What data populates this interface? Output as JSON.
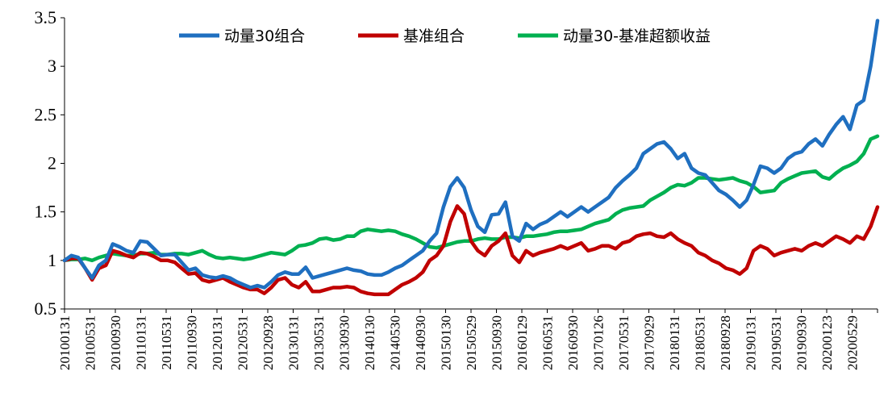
{
  "chart_data": {
    "type": "line",
    "title": "",
    "xlabel": "",
    "ylabel": "",
    "ylim": [
      0.5,
      3.5
    ],
    "yticks": [
      "0.5",
      "1",
      "1.5",
      "2",
      "2.5",
      "3",
      "3.5"
    ],
    "grid": false,
    "legend": "top-center",
    "x_tick_labels": [
      "20100131",
      "20100531",
      "20100930",
      "20110131",
      "20110531",
      "20110930",
      "20120131",
      "20120531",
      "20120928",
      "20130131",
      "20130531",
      "20130930",
      "20140130",
      "20140530",
      "20140930",
      "20150130",
      "20150529",
      "20150930",
      "20160129",
      "20160531",
      "20160930",
      "20170126",
      "20170531",
      "20170929",
      "20180131",
      "20180531",
      "20180928",
      "20190131",
      "20190531",
      "20190930",
      "20200123",
      "20200529"
    ],
    "series": [
      {
        "name": "动量30组合",
        "color": "#1f6fc0",
        "values": [
          1.0,
          1.05,
          1.03,
          0.92,
          0.82,
          0.95,
          1.0,
          1.17,
          1.14,
          1.1,
          1.08,
          1.2,
          1.19,
          1.12,
          1.05,
          1.06,
          1.06,
          0.98,
          0.9,
          0.92,
          0.85,
          0.83,
          0.82,
          0.84,
          0.82,
          0.78,
          0.75,
          0.72,
          0.74,
          0.72,
          0.78,
          0.85,
          0.88,
          0.86,
          0.86,
          0.93,
          0.82,
          0.84,
          0.86,
          0.88,
          0.9,
          0.92,
          0.9,
          0.89,
          0.86,
          0.85,
          0.85,
          0.88,
          0.92,
          0.95,
          1.0,
          1.05,
          1.1,
          1.2,
          1.28,
          1.55,
          1.76,
          1.85,
          1.75,
          1.52,
          1.35,
          1.29,
          1.47,
          1.48,
          1.6,
          1.25,
          1.2,
          1.38,
          1.32,
          1.37,
          1.4,
          1.45,
          1.5,
          1.45,
          1.5,
          1.55,
          1.5,
          1.55,
          1.6,
          1.65,
          1.75,
          1.82,
          1.88,
          1.95,
          2.1,
          2.15,
          2.2,
          2.22,
          2.15,
          2.05,
          2.1,
          1.95,
          1.9,
          1.88,
          1.8,
          1.72,
          1.68,
          1.62,
          1.55,
          1.62,
          1.78,
          1.97,
          1.95,
          1.9,
          1.95,
          2.05,
          2.1,
          2.12,
          2.2,
          2.25,
          2.18,
          2.3,
          2.4,
          2.48,
          2.35,
          2.6,
          2.65,
          3.0,
          3.47
        ]
      },
      {
        "name": "基准组合",
        "color": "#c00000",
        "values": [
          1.0,
          1.02,
          1.02,
          0.92,
          0.8,
          0.92,
          0.95,
          1.1,
          1.08,
          1.05,
          1.03,
          1.08,
          1.07,
          1.04,
          1.0,
          1.0,
          0.98,
          0.92,
          0.86,
          0.87,
          0.8,
          0.78,
          0.8,
          0.82,
          0.78,
          0.75,
          0.72,
          0.7,
          0.7,
          0.66,
          0.72,
          0.8,
          0.82,
          0.75,
          0.72,
          0.78,
          0.68,
          0.68,
          0.7,
          0.72,
          0.72,
          0.73,
          0.72,
          0.68,
          0.66,
          0.65,
          0.65,
          0.65,
          0.7,
          0.75,
          0.78,
          0.82,
          0.88,
          1.0,
          1.05,
          1.15,
          1.4,
          1.56,
          1.48,
          1.2,
          1.1,
          1.05,
          1.15,
          1.2,
          1.28,
          1.05,
          0.98,
          1.1,
          1.05,
          1.08,
          1.1,
          1.12,
          1.15,
          1.12,
          1.15,
          1.18,
          1.1,
          1.12,
          1.15,
          1.15,
          1.12,
          1.18,
          1.2,
          1.25,
          1.27,
          1.28,
          1.25,
          1.24,
          1.28,
          1.22,
          1.18,
          1.15,
          1.08,
          1.05,
          1.0,
          0.97,
          0.92,
          0.9,
          0.86,
          0.92,
          1.1,
          1.15,
          1.12,
          1.05,
          1.08,
          1.1,
          1.12,
          1.1,
          1.15,
          1.18,
          1.15,
          1.2,
          1.25,
          1.22,
          1.18,
          1.25,
          1.22,
          1.35,
          1.55
        ]
      },
      {
        "name": "动量30-基准超额收益",
        "color": "#00b050",
        "values": [
          1.0,
          1.01,
          1.01,
          1.02,
          1.0,
          1.03,
          1.05,
          1.07,
          1.06,
          1.05,
          1.05,
          1.07,
          1.07,
          1.08,
          1.06,
          1.06,
          1.07,
          1.07,
          1.06,
          1.08,
          1.1,
          1.06,
          1.03,
          1.02,
          1.03,
          1.02,
          1.01,
          1.02,
          1.04,
          1.06,
          1.08,
          1.07,
          1.06,
          1.1,
          1.15,
          1.16,
          1.18,
          1.22,
          1.23,
          1.21,
          1.22,
          1.25,
          1.25,
          1.3,
          1.32,
          1.31,
          1.3,
          1.31,
          1.3,
          1.27,
          1.25,
          1.22,
          1.18,
          1.14,
          1.13,
          1.15,
          1.17,
          1.19,
          1.2,
          1.2,
          1.22,
          1.23,
          1.22,
          1.22,
          1.24,
          1.24,
          1.23,
          1.25,
          1.25,
          1.26,
          1.27,
          1.29,
          1.3,
          1.3,
          1.31,
          1.32,
          1.35,
          1.38,
          1.4,
          1.42,
          1.48,
          1.52,
          1.54,
          1.55,
          1.56,
          1.62,
          1.66,
          1.7,
          1.75,
          1.78,
          1.77,
          1.8,
          1.85,
          1.85,
          1.84,
          1.83,
          1.84,
          1.85,
          1.82,
          1.8,
          1.76,
          1.7,
          1.71,
          1.72,
          1.8,
          1.84,
          1.87,
          1.9,
          1.91,
          1.92,
          1.86,
          1.84,
          1.9,
          1.95,
          1.98,
          2.02,
          2.1,
          2.25,
          2.28
        ]
      }
    ]
  }
}
